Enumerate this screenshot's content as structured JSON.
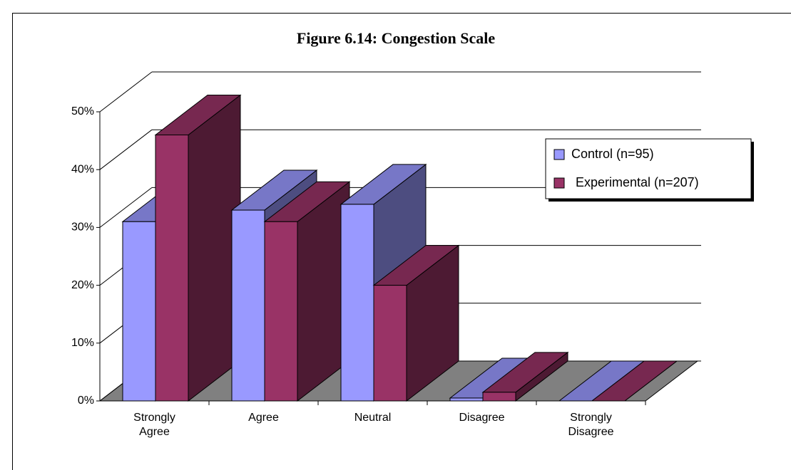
{
  "chart_data": {
    "type": "bar3d",
    "title": "Figure 6.14: Congestion Scale",
    "categories": [
      "Strongly Agree",
      "Agree",
      "Neutral",
      "Disagree",
      "Strongly Disagree"
    ],
    "series": [
      {
        "name": "Control (n=95)",
        "color": "#9999ff",
        "values": [
          31,
          33,
          34,
          0.5,
          0
        ]
      },
      {
        "name": "Experimental (n=207)",
        "color": "#993366",
        "values": [
          46,
          31,
          20,
          1.5,
          0
        ]
      }
    ],
    "ylim": [
      0,
      50
    ],
    "yticks": [
      {
        "value": 0,
        "label": "0%"
      },
      {
        "value": 10,
        "label": "10%"
      },
      {
        "value": 20,
        "label": "20%"
      },
      {
        "value": 30,
        "label": "30%"
      },
      {
        "value": 40,
        "label": "40%"
      },
      {
        "value": 50,
        "label": "50%"
      }
    ],
    "grid": true,
    "legend": "right"
  }
}
